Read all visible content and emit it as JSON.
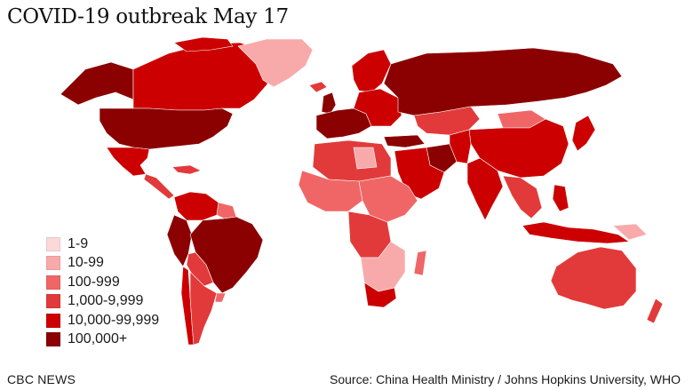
{
  "title": "COVID-19 outbreak May 17",
  "legend": [
    {
      "label": "1-9",
      "color": "#fcd9d9"
    },
    {
      "label": "10-99",
      "color": "#f8aaaa"
    },
    {
      "label": "100-999",
      "color": "#f06666"
    },
    {
      "label": "1,000-9,999",
      "color": "#e23a3a"
    },
    {
      "label": "10,000-99,999",
      "color": "#cc0000"
    },
    {
      "label": "100,000+",
      "color": "#8b0000"
    }
  ],
  "footer": {
    "brand": "CBC NEWS",
    "source": "Source: China Health Ministry / Johns Hopkins University, WHO"
  }
}
